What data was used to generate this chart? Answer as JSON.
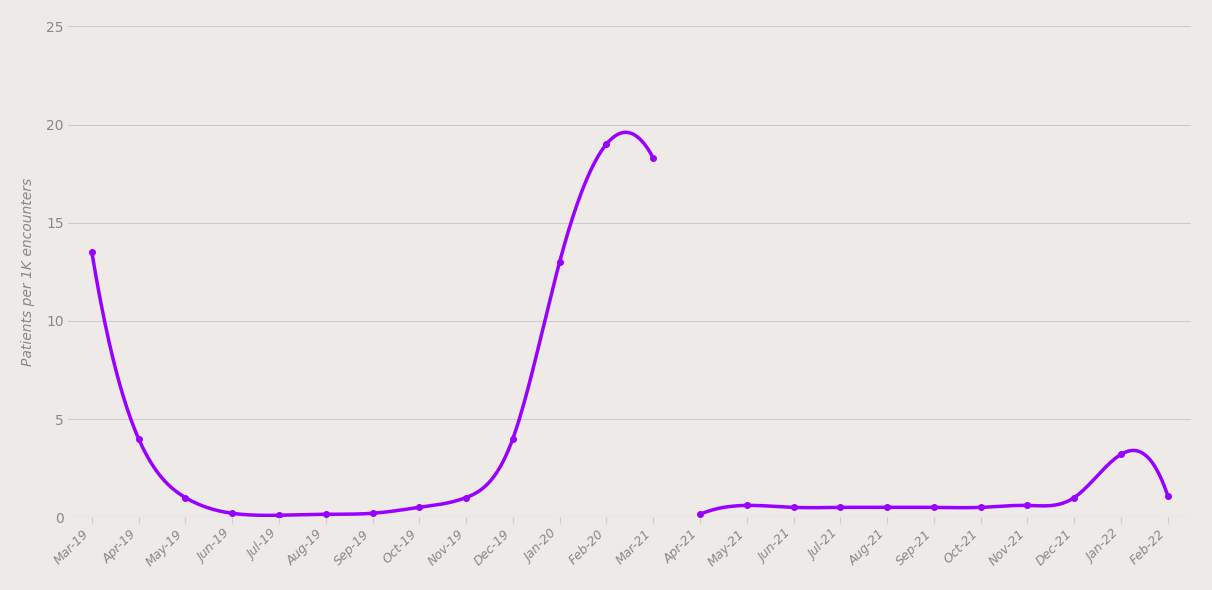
{
  "background_color": "#EEEAE8",
  "grid_color": "#cccccc",
  "line_color": "#9900ff",
  "line_width": 2.5,
  "marker_size": 4,
  "ylabel": "Patients per 1K encounters",
  "ylim": [
    0,
    25
  ],
  "yticks": [
    0,
    5,
    10,
    15,
    20,
    25
  ],
  "tick_label_color": "#888888",
  "axis_label_color": "#888888",
  "all_x_labels": [
    "Mar-19",
    "Apr-19",
    "May-19",
    "Jun-19",
    "Jul-19",
    "Aug-19",
    "Sep-19",
    "Oct-19",
    "Nov-19",
    "Dec-19",
    "Jan-20",
    "Feb-20",
    "Mar-21",
    "Apr-21",
    "May-21",
    "Jun-21",
    "Jul-21",
    "Aug-21",
    "Sep-21",
    "Oct-21",
    "Nov-21",
    "Dec-21",
    "Jan-22",
    "Feb-22"
  ],
  "s1_indices": [
    0,
    1,
    2,
    3,
    4,
    5,
    6,
    7,
    8,
    9,
    10,
    11,
    12
  ],
  "s1_values": [
    13.5,
    4.0,
    1.0,
    0.2,
    0.1,
    0.15,
    0.2,
    0.5,
    1.0,
    4.0,
    13.0,
    19.0,
    18.3
  ],
  "s2_indices": [
    13,
    14,
    15,
    16,
    17,
    18,
    19,
    20,
    21,
    22,
    23
  ],
  "s2_values": [
    0.15,
    0.6,
    0.5,
    0.5,
    0.5,
    0.5,
    0.5,
    0.6,
    1.0,
    3.2,
    1.1
  ]
}
